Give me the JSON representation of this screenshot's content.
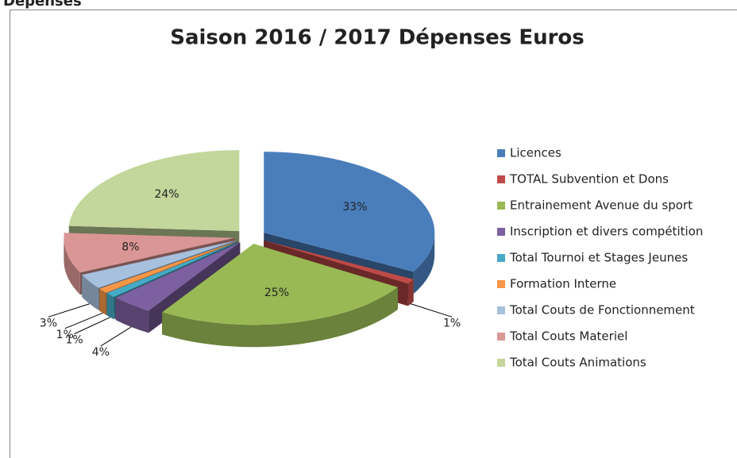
{
  "header": "Dépenses",
  "chart_data": {
    "type": "pie3d",
    "title": "Saison 2016 / 2017 Dépenses Euros",
    "categories": [
      "Licences",
      "TOTAL Subvention et Dons",
      "Entrainement Avenue du sport",
      "Inscription et divers compétition",
      "Total Tournoi et Stages Jeunes",
      "Formation Interne",
      "Total Couts de Fonctionnement",
      "Total Couts Materiel",
      "Total Couts Animations"
    ],
    "values": [
      33,
      1,
      25,
      4,
      1,
      1,
      3,
      8,
      24
    ],
    "value_labels": [
      "33%",
      "1%",
      "25%",
      "4%",
      "1%",
      "1%",
      "3%",
      "8%",
      "24%"
    ],
    "colors": [
      "#4a7ebb",
      "#be4b48",
      "#98b954",
      "#7d60a0",
      "#46aac5",
      "#f79646",
      "#a7c0de",
      "#da9695",
      "#c3d69b"
    ],
    "legend": "right"
  }
}
